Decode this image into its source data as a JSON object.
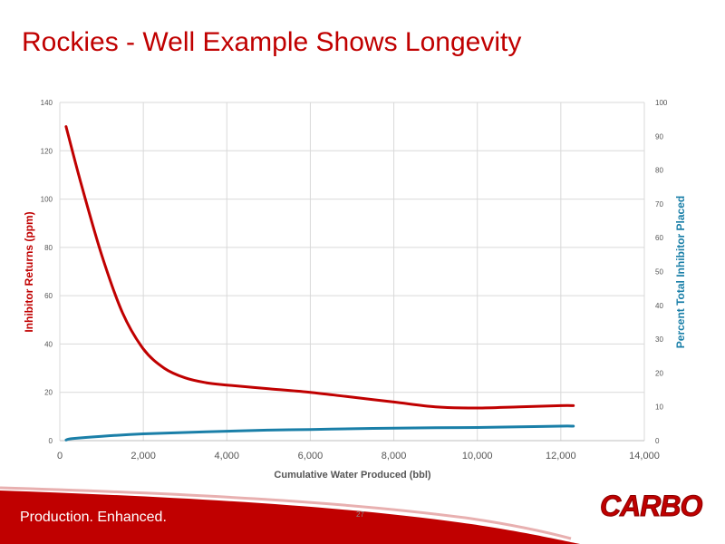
{
  "slide": {
    "title": "Rockies - Well Example Shows Longevity",
    "footer_tagline": "Production. Enhanced.",
    "page_number": "27",
    "logo_text": "CARBO"
  },
  "colors": {
    "title": "#c00000",
    "returns_series": "#c00000",
    "placed_series": "#1a7fa8",
    "footer_band": "#c00000"
  },
  "chart_data": {
    "type": "line",
    "xlabel": "Cumulative Water Produced (bbl)",
    "ylabel": "Inhibitor Returns (ppm)",
    "y2label": "Percent Total Inhibitor Placed",
    "xlim": [
      0,
      14000
    ],
    "ylim": [
      0,
      140
    ],
    "y2lim": [
      0,
      100
    ],
    "x_ticks": [
      "0",
      "2,000",
      "4,000",
      "6,000",
      "8,000",
      "10,000",
      "12,000",
      "14,000"
    ],
    "y_ticks": [
      "0",
      "20",
      "40",
      "60",
      "80",
      "100",
      "120",
      "140"
    ],
    "y2_ticks": [
      "0",
      "10",
      "20",
      "30",
      "40",
      "50",
      "60",
      "70",
      "80",
      "90",
      "100"
    ],
    "grid": true,
    "series": [
      {
        "axis": "left",
        "x": [
          150,
          500,
          1000,
          1500,
          2000,
          2500,
          3000,
          3500,
          4000,
          5000,
          6000,
          7000,
          8000,
          9000,
          10000,
          11000,
          12000,
          12300
        ],
        "y": [
          130,
          107,
          77,
          53,
          38,
          30,
          26,
          24,
          23,
          21.5,
          20,
          18,
          16,
          14,
          13.5,
          14,
          14.5,
          14.5
        ]
      },
      {
        "axis": "right",
        "x": [
          150,
          300,
          1000,
          2000,
          3000,
          4000,
          5000,
          6000,
          7000,
          8000,
          9000,
          10000,
          11000,
          12000,
          12300
        ],
        "y": [
          0.2,
          0.6,
          1.3,
          2.0,
          2.4,
          2.8,
          3.1,
          3.3,
          3.5,
          3.7,
          3.8,
          3.9,
          4.1,
          4.3,
          4.3
        ]
      }
    ]
  }
}
